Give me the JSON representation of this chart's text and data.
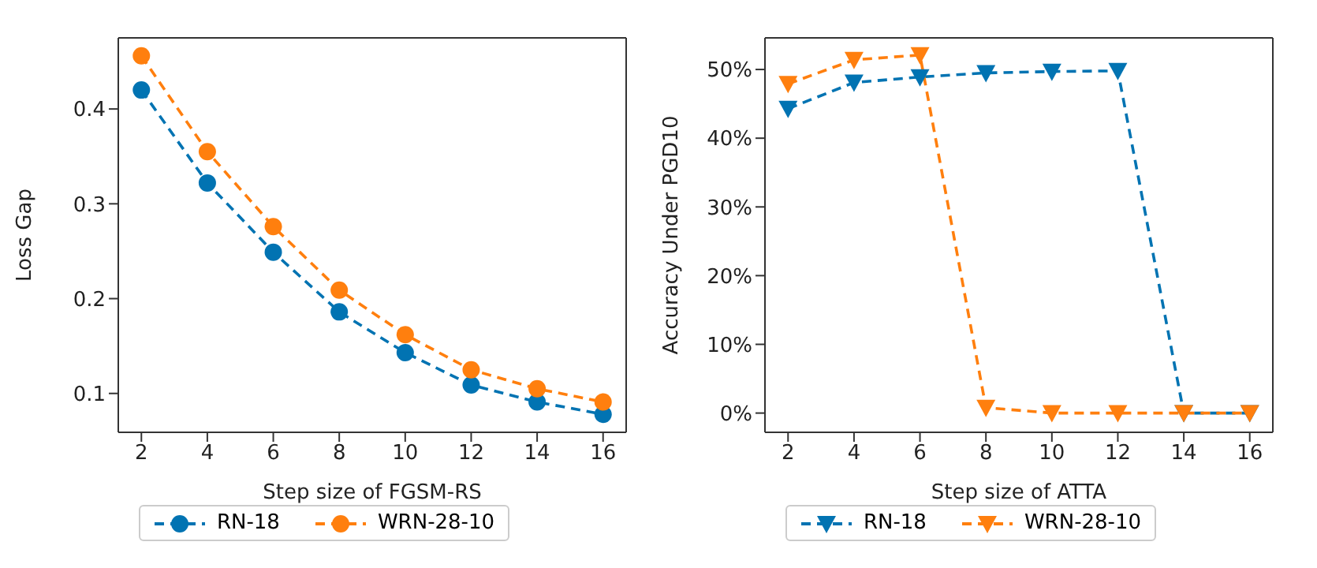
{
  "chart_data": [
    {
      "type": "line",
      "xlabel": "Step size of FGSM-RS",
      "ylabel": "Loss Gap",
      "x": [
        2,
        4,
        6,
        8,
        10,
        12,
        14,
        16
      ],
      "xlim": [
        1.3,
        16.7
      ],
      "xticks": [
        2,
        4,
        6,
        8,
        10,
        12,
        14,
        16
      ],
      "ylim": [
        0.059,
        0.475
      ],
      "yticks": [
        0.1,
        0.2,
        0.3,
        0.4
      ],
      "marker": "circle",
      "line_style": "dashed",
      "legend": "bottom",
      "grid": false,
      "series": [
        {
          "name": "RN-18",
          "color": "#0173b2",
          "values": [
            0.42,
            0.322,
            0.249,
            0.186,
            0.143,
            0.109,
            0.091,
            0.078
          ]
        },
        {
          "name": "WRN-28-10",
          "color": "#ff7f0e",
          "values": [
            0.456,
            0.355,
            0.276,
            0.209,
            0.162,
            0.125,
            0.105,
            0.091
          ]
        }
      ]
    },
    {
      "type": "line",
      "xlabel": "Step size of ATTA",
      "ylabel": "Accuracy Under PGD10",
      "x": [
        2,
        4,
        6,
        8,
        10,
        12,
        14,
        16
      ],
      "xlim": [
        1.3,
        16.7
      ],
      "xticks": [
        2,
        4,
        6,
        8,
        10,
        12,
        14,
        16
      ],
      "ylim": [
        -2.8,
        54.6
      ],
      "yticks": [
        {
          "value": 0,
          "label": "0%"
        },
        {
          "value": 10,
          "label": "10%"
        },
        {
          "value": 20,
          "label": "20%"
        },
        {
          "value": 30,
          "label": "30%"
        },
        {
          "value": 40,
          "label": "40%"
        },
        {
          "value": 50,
          "label": "50%"
        }
      ],
      "marker": "triangle",
      "line_style": "dashed",
      "legend": "bottom",
      "grid": false,
      "series": [
        {
          "name": "RN-18",
          "color": "#0173b2",
          "values": [
            44.3,
            48.1,
            48.9,
            49.5,
            49.7,
            49.8,
            0,
            0
          ]
        },
        {
          "name": "WRN-28-10",
          "color": "#ff7f0e",
          "values": [
            47.9,
            51.4,
            52.1,
            0.8,
            0,
            0,
            0,
            0
          ]
        }
      ]
    }
  ]
}
